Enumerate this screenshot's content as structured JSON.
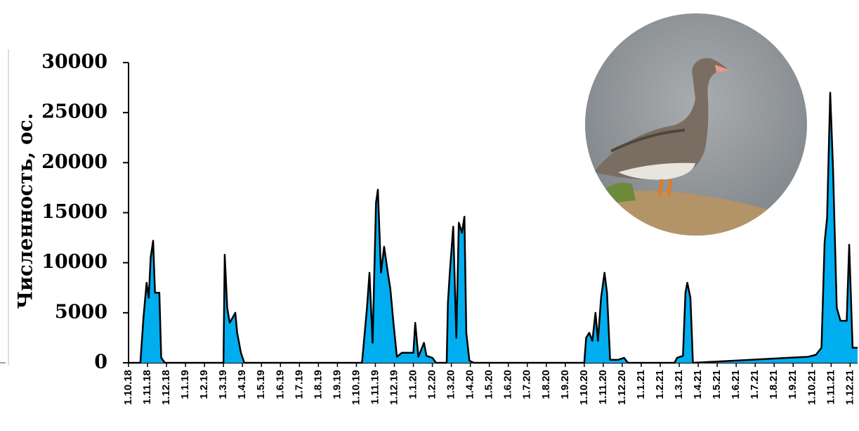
{
  "chart_data": {
    "type": "area",
    "y_label": "Численность, ос.",
    "color": "#00aeef",
    "x": [
      "1.10.18",
      "20.10.18",
      "25.10.18",
      "30.10.18",
      "3.11.18",
      "6.11.18",
      "10.11.18",
      "13.11.18",
      "20.11.18",
      "23.11.18",
      "29.11.18",
      "1.3.19",
      "3.3.19",
      "7.3.19",
      "11.3.19",
      "20.3.19",
      "23.3.19",
      "29.3.19",
      "4.4.19",
      "10.10.19",
      "18.10.19",
      "22.10.19",
      "27.10.19",
      "2.11.19",
      "5.11.19",
      "10.11.19",
      "15.11.19",
      "21.11.19",
      "25.11.19",
      "30.11.19",
      "5.12.19",
      "13.12.19",
      "1.1.20",
      "4.1.20",
      "9.1.20",
      "18.1.20",
      "22.1.20",
      "1.2.20",
      "7.2.20",
      "24.2.20",
      "26.2.20",
      "29.2.20",
      "4.3.20",
      "9.3.20",
      "13.3.20",
      "18.3.20",
      "22.3.20",
      "25.3.20",
      "30.3.20",
      "7.4.20",
      "1.10.20",
      "4.10.20",
      "9.10.20",
      "14.10.20",
      "19.10.20",
      "23.10.20",
      "28.10.20",
      "3.11.20",
      "7.11.20",
      "12.11.20",
      "25.11.20",
      "4.12.20",
      "10.12.20",
      "24.2.21",
      "28.2.21",
      "7.3.21",
      "11.3.21",
      "14.3.21",
      "19.3.21",
      "23.3.21",
      "25.9.21",
      "7.10.21",
      "16.10.21",
      "21.10.21",
      "25.10.21",
      "30.10.21",
      "4.11.21",
      "10.11.21",
      "16.11.21",
      "26.11.21",
      "30.11.21",
      "5.12.21",
      "13.12.21"
    ],
    "values": [
      0,
      0,
      4500,
      8000,
      6500,
      10500,
      12200,
      7000,
      7000,
      500,
      0,
      0,
      10800,
      5500,
      4000,
      5000,
      3000,
      1000,
      0,
      0,
      5500,
      9000,
      2000,
      16000,
      17300,
      9000,
      11600,
      9000,
      7400,
      4000,
      600,
      1000,
      1000,
      4000,
      600,
      2000,
      700,
      500,
      0,
      0,
      6000,
      9000,
      13600,
      2500,
      14000,
      13000,
      14600,
      3000,
      200,
      0,
      0,
      2500,
      3000,
      2200,
      5000,
      2200,
      6500,
      9000,
      7000,
      300,
      300,
      500,
      0,
      0,
      500,
      700,
      7000,
      8000,
      6500,
      0,
      600,
      800,
      1500,
      12000,
      14500,
      27000,
      19500,
      5500,
      4200,
      4200,
      11800,
      1500,
      1500
    ],
    "xlim": [
      "1.10.18",
      "13.12.21"
    ],
    "xticks": [
      "1.10.18",
      "1.11.18",
      "1.12.18",
      "1.1.19",
      "1.2.19",
      "1.3.19",
      "1.4.19",
      "1.5.19",
      "1.6.19",
      "1.7.19",
      "1.8.19",
      "1.9.19",
      "1.10.19",
      "1.11.19",
      "1.12.19",
      "1.1.20",
      "1.2.20",
      "1.3.20",
      "1.4.20",
      "1.5.20",
      "1.6.20",
      "1.7.20",
      "1.8.20",
      "1.9.20",
      "1.10.20",
      "1.11.20",
      "1.12.20",
      "1.1.21",
      "1.2.21",
      "1.3.21",
      "1.4.21",
      "1.5.21",
      "1.6.21",
      "1.7.21",
      "1.8.21",
      "1.9.21",
      "1.10.21",
      "1.11.21",
      "1.12.21"
    ],
    "ylim": [
      0,
      30000
    ],
    "yticks": [
      0,
      5000,
      10000,
      15000,
      20000,
      25000,
      30000
    ]
  }
}
